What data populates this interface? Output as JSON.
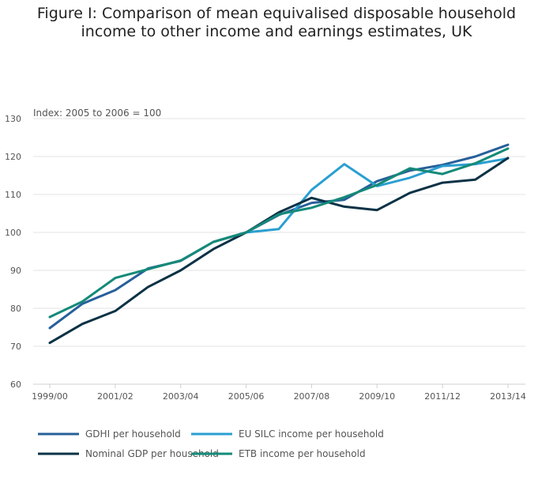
{
  "chart_data": {
    "type": "line",
    "title": "Figure I: Comparison of mean equivalised disposable household income to other income and earnings estimates, UK",
    "ylabel": "Index: 2005 to 2006 = 100",
    "xlabel": "",
    "ylim": [
      60,
      130
    ],
    "yticks": [
      60,
      70,
      80,
      90,
      100,
      110,
      120,
      130
    ],
    "x": [
      "1999/00",
      "2000/01",
      "2001/02",
      "2002/03",
      "2003/04",
      "2004/05",
      "2005/06",
      "2006/07",
      "2007/08",
      "2008/09",
      "2009/10",
      "2010/11",
      "2011/12",
      "2012/13",
      "2013/14"
    ],
    "xticks": [
      "1999/00",
      "2001/02",
      "2003/04",
      "2005/06",
      "2007/08",
      "2009/10",
      "2011/12",
      "2013/14"
    ],
    "grid": true,
    "legend_position": "bottom",
    "series": [
      {
        "name": "GDHI per household",
        "color": "#27609a",
        "values": [
          74.8,
          81.2,
          84.8,
          90.5,
          92.5,
          97.5,
          100,
          104.6,
          107.8,
          108.6,
          113.5,
          116.3,
          117.8,
          120.0,
          123.1
        ]
      },
      {
        "name": "EU SILC income per household",
        "color": "#2a9fd1",
        "values": [
          null,
          null,
          null,
          null,
          null,
          null,
          100,
          100.9,
          111.2,
          118.0,
          112.2,
          114.4,
          117.5,
          118.0,
          119.5
        ]
      },
      {
        "name": "Nominal GDP per household",
        "color": "#0b3246",
        "values": [
          70.9,
          75.9,
          79.3,
          85.6,
          90.0,
          95.6,
          100,
          105.3,
          109.1,
          106.8,
          105.9,
          110.4,
          113.1,
          113.9,
          119.6
        ]
      },
      {
        "name": "ETB income per household",
        "color": "#148a78",
        "values": [
          77.7,
          81.8,
          88.0,
          90.3,
          92.6,
          97.5,
          100,
          104.8,
          106.5,
          109.3,
          112.5,
          116.9,
          115.4,
          118.2,
          122.1
        ]
      }
    ]
  }
}
